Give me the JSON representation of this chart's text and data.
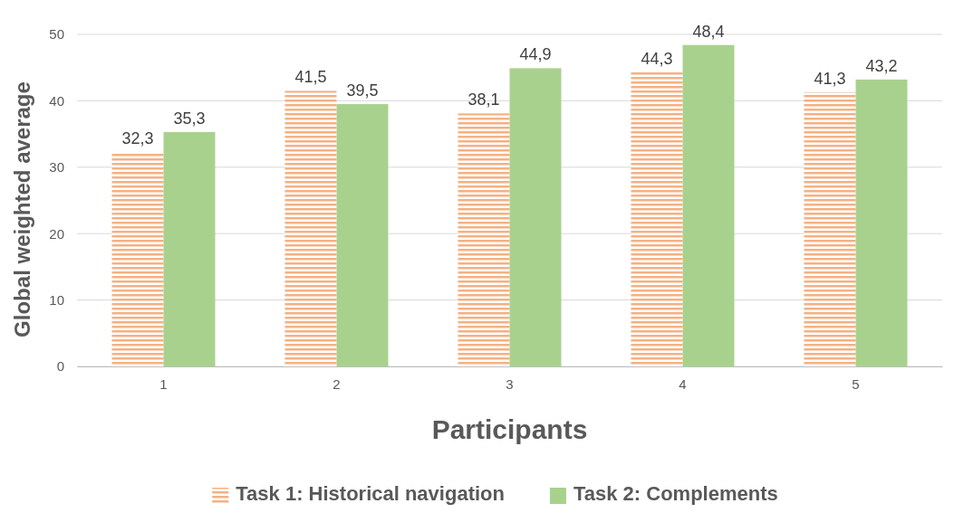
{
  "chart_data": {
    "type": "bar",
    "xlabel": "Participants",
    "ylabel": "Global weighted average",
    "categories": [
      "1",
      "2",
      "3",
      "4",
      "5"
    ],
    "series": [
      {
        "name": "Task 1: Historical navigation",
        "color": "#f4b183",
        "values": [
          32.3,
          41.5,
          38.1,
          44.3,
          41.3
        ],
        "value_labels": [
          "32,3",
          "41,5",
          "38,1",
          "44,3",
          "41,3"
        ]
      },
      {
        "name": "Task 2: Complements",
        "color": "#a9d18e",
        "values": [
          35.3,
          39.5,
          44.9,
          48.4,
          43.2
        ],
        "value_labels": [
          "35,3",
          "39,5",
          "44,9",
          "48,4",
          "43,2"
        ]
      }
    ],
    "ylim": [
      0,
      50
    ],
    "yticks": [
      0,
      10,
      20,
      30,
      40,
      50
    ],
    "grid": "y",
    "legend": "bottom"
  }
}
